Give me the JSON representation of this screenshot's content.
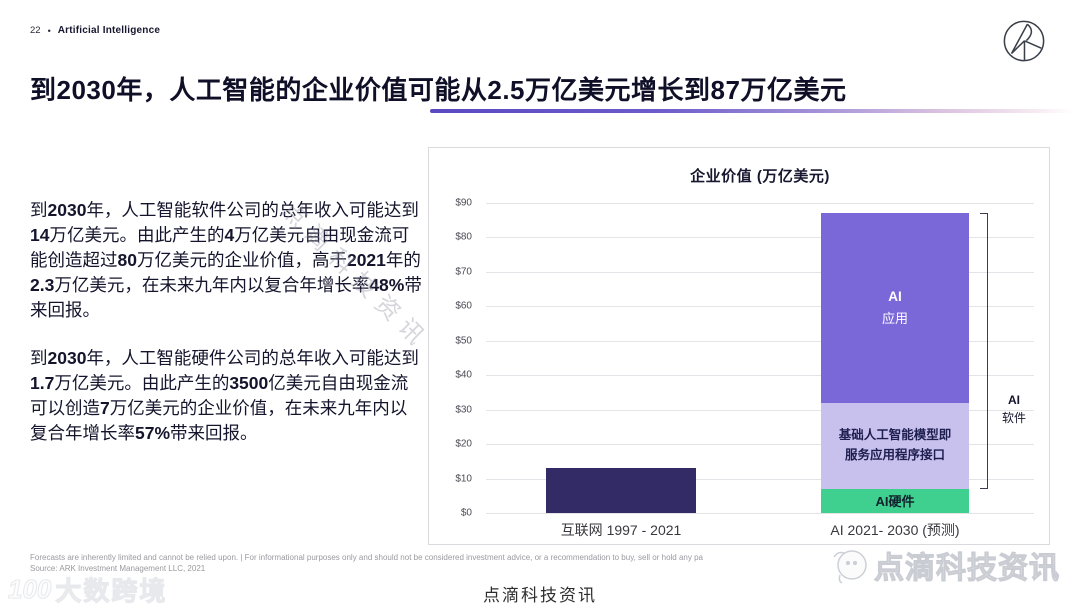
{
  "header": {
    "page_number": "22",
    "separator": "•",
    "section": "Artificial Intelligence"
  },
  "title": {
    "segments": [
      {
        "t": "到",
        "b": 0
      },
      {
        "t": "2030",
        "b": 1
      },
      {
        "t": "年，人工智能的企业价值可能从",
        "b": 0
      },
      {
        "t": "2.5",
        "b": 1
      },
      {
        "t": "万亿美元增长到",
        "b": 0
      },
      {
        "t": "87",
        "b": 1
      },
      {
        "t": "万亿美元",
        "b": 0
      }
    ]
  },
  "intro": {
    "paragraph1_segments": [
      {
        "t": "到",
        "b": 0
      },
      {
        "t": "2030",
        "b": 1
      },
      {
        "t": "年，人工智能软件公司的总年收入可能达到",
        "b": 0
      },
      {
        "t": "14",
        "b": 1
      },
      {
        "t": "万亿美元。由此产生的",
        "b": 0
      },
      {
        "t": "4",
        "b": 1
      },
      {
        "t": "万亿美元自由现金流可能创造超过",
        "b": 0
      },
      {
        "t": "80",
        "b": 1
      },
      {
        "t": "万亿美元的企业价值，高于",
        "b": 0
      },
      {
        "t": "2021",
        "b": 1
      },
      {
        "t": "年的",
        "b": 0
      },
      {
        "t": "2.3",
        "b": 1
      },
      {
        "t": "万亿美元，在未来九年内以复合年增长率",
        "b": 0
      },
      {
        "t": "48%",
        "b": 1
      },
      {
        "t": "带来回报。",
        "b": 0
      }
    ],
    "paragraph2_segments": [
      {
        "t": "到",
        "b": 0
      },
      {
        "t": "2030",
        "b": 1
      },
      {
        "t": "年，人工智能硬件公司的总年收入可能达到",
        "b": 0
      },
      {
        "t": "1.7",
        "b": 1
      },
      {
        "t": "万亿美元。由此产生的",
        "b": 0
      },
      {
        "t": "3500",
        "b": 1
      },
      {
        "t": "亿美元自由现金流可以创造",
        "b": 0
      },
      {
        "t": "7",
        "b": 1
      },
      {
        "t": "万亿美元的企业价值，在未来九年内以复合年增长率",
        "b": 0
      },
      {
        "t": "57%",
        "b": 1
      },
      {
        "t": "带来回报。",
        "b": 0
      }
    ]
  },
  "chart_data": {
    "type": "bar",
    "stacked": true,
    "title": "企业价值 (万亿美元)",
    "ylim": [
      0,
      90
    ],
    "ytick_step": 10,
    "ytick_prefix": "$",
    "grid": true,
    "categories": [
      "互联网 1997 - 2021",
      "AI 2021- 2030 (预测)"
    ],
    "bars": {
      "internet": {
        "label": "互联网 1997 - 2021",
        "value": 13,
        "color": "#332b66"
      },
      "ai": {
        "label": "AI 2021- 2030 (预测)",
        "total": 87,
        "segments": [
          {
            "name": "AI硬件",
            "value": 7,
            "color": "#3fd08f",
            "label_line1": "AI硬件",
            "label_line2": ""
          },
          {
            "name": "基础人工智能模型即服务应用程序接口",
            "value": 25,
            "color": "#c8c1ee",
            "label_line1": "基础人工智能模型即",
            "label_line2": "服务应用程序接口"
          },
          {
            "name": "AI 应用",
            "value": 55,
            "color": "#7a68d9",
            "label_line1": "AI",
            "label_line2": "应用"
          }
        ]
      }
    },
    "bracket_range": [
      7,
      87
    ],
    "bracket_label_line1": "AI",
    "bracket_label_line2": "软件"
  },
  "footer": {
    "disclaimer_line1": "Forecasts are inherently limited and cannot be relied upon. | For informational purposes only and should not be considered investment advice, or a recommendation to buy, sell or hold any pa",
    "disclaimer_line2": "Source: ARK Investment Management LLC, 2021",
    "center_watermark": "点滴科技资讯"
  },
  "watermarks": {
    "diagonal_text": "点滴科技资讯",
    "bottom_right_text": "点滴科技资讯",
    "bottom_left_mark": "100",
    "bottom_left_text": "大数跨境"
  },
  "colors": {
    "accent_purple": "#7a68d9",
    "accent_light_purple": "#c8c1ee",
    "accent_green": "#3fd08f",
    "accent_navy": "#332b66",
    "title_text": "#0f0f28"
  }
}
